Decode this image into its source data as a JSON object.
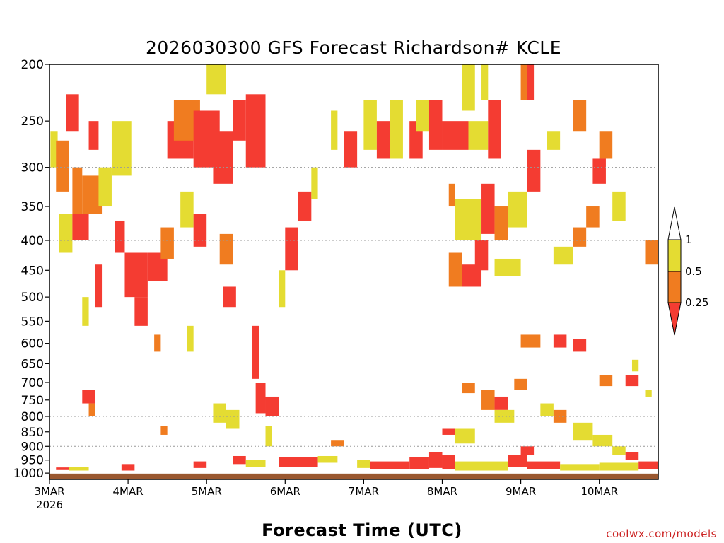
{
  "chart_data": {
    "type": "heatmap",
    "title": "2026030300 GFS Forecast Richardson# KCLE",
    "xlabel": "Forecast Time (UTC)",
    "ylabel": "",
    "credit": "coolwx.com/models",
    "y_axis": {
      "scale": "log-pressure",
      "unit_implied": "hPa",
      "range": [
        1025,
        200
      ],
      "ticks": [
        200,
        250,
        300,
        350,
        400,
        450,
        500,
        550,
        600,
        650,
        700,
        750,
        800,
        850,
        900,
        950,
        1000
      ],
      "grid_lines": [
        300,
        400,
        800,
        900
      ],
      "grid": "dotted"
    },
    "x_axis": {
      "range_hours": [
        0,
        186
      ],
      "ticks": [
        {
          "hour": 0,
          "label": "3MAR",
          "sublabel": "2026"
        },
        {
          "hour": 24,
          "label": "4MAR",
          "sublabel": ""
        },
        {
          "hour": 48,
          "label": "5MAR",
          "sublabel": ""
        },
        {
          "hour": 72,
          "label": "6MAR",
          "sublabel": ""
        },
        {
          "hour": 96,
          "label": "7MAR",
          "sublabel": ""
        },
        {
          "hour": 120,
          "label": "8MAR",
          "sublabel": ""
        },
        {
          "hour": 144,
          "label": "9MAR",
          "sublabel": ""
        },
        {
          "hour": 168,
          "label": "10MAR",
          "sublabel": ""
        }
      ]
    },
    "colorbar": {
      "placement": "right",
      "levels": [
        "0.25",
        "0.5",
        "1"
      ],
      "bins": [
        {
          "range": "< 0.25",
          "color": "#f43c32"
        },
        {
          "range": "0.25 - 0.5",
          "color": "#f07c20"
        },
        {
          "range": "0.5 - 1",
          "color": "#e4dc32"
        },
        {
          "range": "> 1",
          "color": "#ffffff"
        }
      ]
    },
    "colors": {
      "lt_025": "#f43c32",
      "r025_05": "#f07c20",
      "r05_1": "#e4dc32",
      "ground": "#9a5830"
    },
    "notes_ground": "Brown band below surface pressure (~1000-1025 hPa)",
    "cells": [
      {
        "x": [
          0.3,
          2.5
        ],
        "p": [
          260,
          300
        ],
        "c": "r05_1"
      },
      {
        "x": [
          2,
          6
        ],
        "p": [
          270,
          330
        ],
        "c": "r025_05"
      },
      {
        "x": [
          5,
          9
        ],
        "p": [
          225,
          260
        ],
        "c": "lt_025"
      },
      {
        "x": [
          7,
          10
        ],
        "p": [
          300,
          360
        ],
        "c": "r025_05"
      },
      {
        "x": [
          10,
          16
        ],
        "p": [
          310,
          360
        ],
        "c": "r025_05"
      },
      {
        "x": [
          3,
          7
        ],
        "p": [
          360,
          420
        ],
        "c": "r05_1"
      },
      {
        "x": [
          7,
          12
        ],
        "p": [
          360,
          400
        ],
        "c": "lt_025"
      },
      {
        "x": [
          12,
          15
        ],
        "p": [
          250,
          280
        ],
        "c": "lt_025"
      },
      {
        "x": [
          15,
          19
        ],
        "p": [
          300,
          350
        ],
        "c": "r05_1"
      },
      {
        "x": [
          19,
          25
        ],
        "p": [
          250,
          310
        ],
        "c": "r05_1"
      },
      {
        "x": [
          20,
          23
        ],
        "p": [
          370,
          420
        ],
        "c": "lt_025"
      },
      {
        "x": [
          23,
          30
        ],
        "p": [
          420,
          500
        ],
        "c": "lt_025"
      },
      {
        "x": [
          30,
          36
        ],
        "p": [
          420,
          470
        ],
        "c": "lt_025"
      },
      {
        "x": [
          36,
          44
        ],
        "p": [
          250,
          290
        ],
        "c": "lt_025"
      },
      {
        "x": [
          38,
          46
        ],
        "p": [
          230,
          270
        ],
        "c": "r025_05"
      },
      {
        "x": [
          44,
          52
        ],
        "p": [
          240,
          300
        ],
        "c": "lt_025"
      },
      {
        "x": [
          50,
          56
        ],
        "p": [
          260,
          320
        ],
        "c": "lt_025"
      },
      {
        "x": [
          56,
          60
        ],
        "p": [
          230,
          270
        ],
        "c": "lt_025"
      },
      {
        "x": [
          60,
          66
        ],
        "p": [
          225,
          300
        ],
        "c": "lt_025"
      },
      {
        "x": [
          48,
          54
        ],
        "p": [
          200,
          225
        ],
        "c": "r05_1"
      },
      {
        "x": [
          40,
          44
        ],
        "p": [
          330,
          380
        ],
        "c": "r05_1"
      },
      {
        "x": [
          34,
          38
        ],
        "p": [
          380,
          430
        ],
        "c": "r025_05"
      },
      {
        "x": [
          44,
          48
        ],
        "p": [
          360,
          410
        ],
        "c": "lt_025"
      },
      {
        "x": [
          52,
          56
        ],
        "p": [
          390,
          440
        ],
        "c": "r025_05"
      },
      {
        "x": [
          10,
          12
        ],
        "p": [
          500,
          560
        ],
        "c": "r05_1"
      },
      {
        "x": [
          14,
          16
        ],
        "p": [
          440,
          520
        ],
        "c": "lt_025"
      },
      {
        "x": [
          26,
          30
        ],
        "p": [
          500,
          560
        ],
        "c": "lt_025"
      },
      {
        "x": [
          32,
          34
        ],
        "p": [
          580,
          620
        ],
        "c": "r025_05"
      },
      {
        "x": [
          42,
          44
        ],
        "p": [
          560,
          620
        ],
        "c": "r05_1"
      },
      {
        "x": [
          53,
          57
        ],
        "p": [
          480,
          520
        ],
        "c": "lt_025"
      },
      {
        "x": [
          62,
          64
        ],
        "p": [
          560,
          690
        ],
        "c": "lt_025"
      },
      {
        "x": [
          63,
          66
        ],
        "p": [
          700,
          790
        ],
        "c": "lt_025"
      },
      {
        "x": [
          66,
          70
        ],
        "p": [
          740,
          800
        ],
        "c": "lt_025"
      },
      {
        "x": [
          70,
          72
        ],
        "p": [
          450,
          520
        ],
        "c": "r05_1"
      },
      {
        "x": [
          72,
          76
        ],
        "p": [
          380,
          450
        ],
        "c": "lt_025"
      },
      {
        "x": [
          76,
          80
        ],
        "p": [
          330,
          370
        ],
        "c": "lt_025"
      },
      {
        "x": [
          80,
          82
        ],
        "p": [
          300,
          340
        ],
        "c": "r05_1"
      },
      {
        "x": [
          86,
          88
        ],
        "p": [
          240,
          280
        ],
        "c": "r05_1"
      },
      {
        "x": [
          90,
          94
        ],
        "p": [
          260,
          300
        ],
        "c": "lt_025"
      },
      {
        "x": [
          96,
          100
        ],
        "p": [
          230,
          280
        ],
        "c": "r05_1"
      },
      {
        "x": [
          100,
          104
        ],
        "p": [
          250,
          290
        ],
        "c": "lt_025"
      },
      {
        "x": [
          104,
          108
        ],
        "p": [
          230,
          290
        ],
        "c": "r05_1"
      },
      {
        "x": [
          110,
          114
        ],
        "p": [
          250,
          290
        ],
        "c": "lt_025"
      },
      {
        "x": [
          112,
          116
        ],
        "p": [
          230,
          260
        ],
        "c": "r05_1"
      },
      {
        "x": [
          116,
          120
        ],
        "p": [
          230,
          280
        ],
        "c": "lt_025"
      },
      {
        "x": [
          120,
          128
        ],
        "p": [
          250,
          280
        ],
        "c": "lt_025"
      },
      {
        "x": [
          128,
          134
        ],
        "p": [
          250,
          280
        ],
        "c": "r05_1"
      },
      {
        "x": [
          134,
          138
        ],
        "p": [
          230,
          290
        ],
        "c": "lt_025"
      },
      {
        "x": [
          126,
          130
        ],
        "p": [
          200,
          240
        ],
        "c": "r05_1"
      },
      {
        "x": [
          132,
          134
        ],
        "p": [
          200,
          230
        ],
        "c": "r05_1"
      },
      {
        "x": [
          144,
          146
        ],
        "p": [
          200,
          230
        ],
        "c": "r025_05"
      },
      {
        "x": [
          146,
          148
        ],
        "p": [
          200,
          230
        ],
        "c": "lt_025"
      },
      {
        "x": [
          146,
          150
        ],
        "p": [
          280,
          330
        ],
        "c": "lt_025"
      },
      {
        "x": [
          122,
          124
        ],
        "p": [
          320,
          350
        ],
        "c": "r025_05"
      },
      {
        "x": [
          124,
          132
        ],
        "p": [
          340,
          400
        ],
        "c": "r05_1"
      },
      {
        "x": [
          132,
          136
        ],
        "p": [
          320,
          390
        ],
        "c": "lt_025"
      },
      {
        "x": [
          136,
          140
        ],
        "p": [
          350,
          400
        ],
        "c": "r025_05"
      },
      {
        "x": [
          140,
          146
        ],
        "p": [
          330,
          380
        ],
        "c": "r05_1"
      },
      {
        "x": [
          126,
          132
        ],
        "p": [
          440,
          480
        ],
        "c": "lt_025"
      },
      {
        "x": [
          122,
          126
        ],
        "p": [
          420,
          480
        ],
        "c": "r025_05"
      },
      {
        "x": [
          130,
          134
        ],
        "p": [
          400,
          450
        ],
        "c": "lt_025"
      },
      {
        "x": [
          136,
          144
        ],
        "p": [
          430,
          460
        ],
        "c": "r05_1"
      },
      {
        "x": [
          152,
          156
        ],
        "p": [
          260,
          280
        ],
        "c": "r05_1"
      },
      {
        "x": [
          160,
          164
        ],
        "p": [
          230,
          260
        ],
        "c": "r025_05"
      },
      {
        "x": [
          168,
          172
        ],
        "p": [
          260,
          290
        ],
        "c": "r025_05"
      },
      {
        "x": [
          172,
          176
        ],
        "p": [
          330,
          370
        ],
        "c": "r05_1"
      },
      {
        "x": [
          164,
          168
        ],
        "p": [
          350,
          380
        ],
        "c": "r025_05"
      },
      {
        "x": [
          166,
          170
        ],
        "p": [
          290,
          320
        ],
        "c": "lt_025"
      },
      {
        "x": [
          160,
          164
        ],
        "p": [
          380,
          410
        ],
        "c": "r025_05"
      },
      {
        "x": [
          154,
          160
        ],
        "p": [
          410,
          440
        ],
        "c": "r05_1"
      },
      {
        "x": [
          144,
          150
        ],
        "p": [
          580,
          610
        ],
        "c": "r025_05"
      },
      {
        "x": [
          154,
          158
        ],
        "p": [
          580,
          610
        ],
        "c": "lt_025"
      },
      {
        "x": [
          160,
          164
        ],
        "p": [
          590,
          620
        ],
        "c": "lt_025"
      },
      {
        "x": [
          168,
          172
        ],
        "p": [
          680,
          710
        ],
        "c": "r025_05"
      },
      {
        "x": [
          176,
          180
        ],
        "p": [
          680,
          710
        ],
        "c": "lt_025"
      },
      {
        "x": [
          182,
          186
        ],
        "p": [
          400,
          440
        ],
        "c": "r025_05"
      },
      {
        "x": [
          182,
          184
        ],
        "p": [
          720,
          740
        ],
        "c": "r05_1"
      },
      {
        "x": [
          178,
          180
        ],
        "p": [
          640,
          670
        ],
        "c": "r05_1"
      },
      {
        "x": [
          10,
          14
        ],
        "p": [
          720,
          760
        ],
        "c": "lt_025"
      },
      {
        "x": [
          12,
          14
        ],
        "p": [
          760,
          800
        ],
        "c": "r025_05"
      },
      {
        "x": [
          34,
          36
        ],
        "p": [
          830,
          860
        ],
        "c": "r025_05"
      },
      {
        "x": [
          50,
          54
        ],
        "p": [
          760,
          820
        ],
        "c": "r05_1"
      },
      {
        "x": [
          54,
          58
        ],
        "p": [
          780,
          840
        ],
        "c": "r05_1"
      },
      {
        "x": [
          66,
          68
        ],
        "p": [
          830,
          900
        ],
        "c": "r05_1"
      },
      {
        "x": [
          86,
          90
        ],
        "p": [
          880,
          900
        ],
        "c": "r025_05"
      },
      {
        "x": [
          120,
          124
        ],
        "p": [
          840,
          860
        ],
        "c": "lt_025"
      },
      {
        "x": [
          124,
          130
        ],
        "p": [
          840,
          890
        ],
        "c": "r05_1"
      },
      {
        "x": [
          132,
          136
        ],
        "p": [
          720,
          780
        ],
        "c": "r025_05"
      },
      {
        "x": [
          136,
          140
        ],
        "p": [
          740,
          780
        ],
        "c": "lt_025"
      },
      {
        "x": [
          136,
          142
        ],
        "p": [
          780,
          820
        ],
        "c": "r05_1"
      },
      {
        "x": [
          126,
          130
        ],
        "p": [
          700,
          730
        ],
        "c": "r025_05"
      },
      {
        "x": [
          142,
          146
        ],
        "p": [
          690,
          720
        ],
        "c": "r025_05"
      },
      {
        "x": [
          150,
          154
        ],
        "p": [
          760,
          800
        ],
        "c": "r05_1"
      },
      {
        "x": [
          154,
          158
        ],
        "p": [
          780,
          820
        ],
        "c": "r025_05"
      },
      {
        "x": [
          160,
          166
        ],
        "p": [
          820,
          880
        ],
        "c": "r05_1"
      },
      {
        "x": [
          166,
          172
        ],
        "p": [
          860,
          900
        ],
        "c": "r05_1"
      },
      {
        "x": [
          172,
          176
        ],
        "p": [
          900,
          930
        ],
        "c": "r05_1"
      },
      {
        "x": [
          176,
          180
        ],
        "p": [
          920,
          950
        ],
        "c": "lt_025"
      },
      {
        "x": [
          144,
          148
        ],
        "p": [
          900,
          930
        ],
        "c": "lt_025"
      },
      {
        "x": [
          2,
          6
        ],
        "p": [
          978,
          988
        ],
        "c": "lt_025"
      },
      {
        "x": [
          6,
          12
        ],
        "p": [
          975,
          990
        ],
        "c": "r05_1"
      },
      {
        "x": [
          22,
          26
        ],
        "p": [
          965,
          990
        ],
        "c": "lt_025"
      },
      {
        "x": [
          44,
          48
        ],
        "p": [
          955,
          980
        ],
        "c": "lt_025"
      },
      {
        "x": [
          56,
          60
        ],
        "p": [
          935,
          965
        ],
        "c": "lt_025"
      },
      {
        "x": [
          60,
          66
        ],
        "p": [
          950,
          975
        ],
        "c": "r05_1"
      },
      {
        "x": [
          70,
          82
        ],
        "p": [
          940,
          975
        ],
        "c": "lt_025"
      },
      {
        "x": [
          82,
          88
        ],
        "p": [
          935,
          960
        ],
        "c": "r05_1"
      },
      {
        "x": [
          94,
          98
        ],
        "p": [
          950,
          980
        ],
        "c": "r05_1"
      },
      {
        "x": [
          98,
          110
        ],
        "p": [
          955,
          985
        ],
        "c": "lt_025"
      },
      {
        "x": [
          110,
          116
        ],
        "p": [
          940,
          985
        ],
        "c": "lt_025"
      },
      {
        "x": [
          116,
          120
        ],
        "p": [
          920,
          980
        ],
        "c": "lt_025"
      },
      {
        "x": [
          120,
          124
        ],
        "p": [
          930,
          985
        ],
        "c": "lt_025"
      },
      {
        "x": [
          124,
          140
        ],
        "p": [
          955,
          990
        ],
        "c": "r05_1"
      },
      {
        "x": [
          140,
          146
        ],
        "p": [
          930,
          975
        ],
        "c": "lt_025"
      },
      {
        "x": [
          146,
          156
        ],
        "p": [
          955,
          985
        ],
        "c": "lt_025"
      },
      {
        "x": [
          156,
          168
        ],
        "p": [
          965,
          990
        ],
        "c": "r05_1"
      },
      {
        "x": [
          168,
          180
        ],
        "p": [
          960,
          990
        ],
        "c": "r05_1"
      },
      {
        "x": [
          180,
          186
        ],
        "p": [
          955,
          985
        ],
        "c": "lt_025"
      }
    ]
  }
}
